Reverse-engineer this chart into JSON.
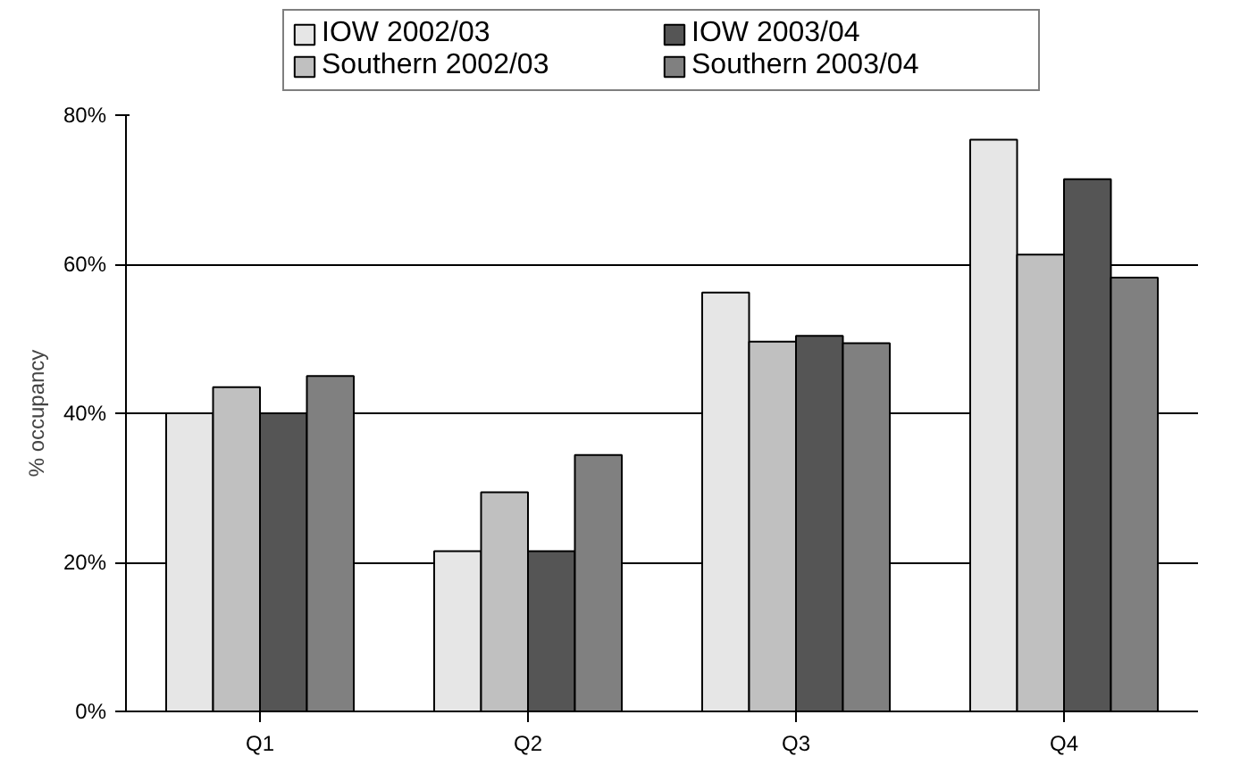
{
  "chart_data": {
    "type": "bar",
    "ylabel": "% occupancy",
    "categories": [
      "Q1",
      "Q2",
      "Q3",
      "Q4"
    ],
    "series": [
      {
        "name": "IOW 2002/03",
        "color": "#e6e6e6",
        "values": [
          40,
          21.5,
          56.2,
          76.7
        ]
      },
      {
        "name": "Southern 2002/03",
        "color": "#c0c0c0",
        "values": [
          43.5,
          29.4,
          49.6,
          61.3
        ]
      },
      {
        "name": "IOW 2003/04",
        "color": "#555555",
        "values": [
          40,
          21.5,
          50.4,
          71.4
        ]
      },
      {
        "name": "Southern 2003/04",
        "color": "#808080",
        "values": [
          45,
          34.4,
          49.4,
          58.2
        ]
      }
    ],
    "ylim": [
      0,
      80
    ],
    "yticks": [
      {
        "value": 0,
        "label": "0%"
      },
      {
        "value": 20,
        "label": "20%"
      },
      {
        "value": 40,
        "label": "40%"
      },
      {
        "value": 60,
        "label": "60%"
      },
      {
        "value": 80,
        "label": "80%"
      }
    ],
    "grid": "y",
    "legend": "top"
  }
}
